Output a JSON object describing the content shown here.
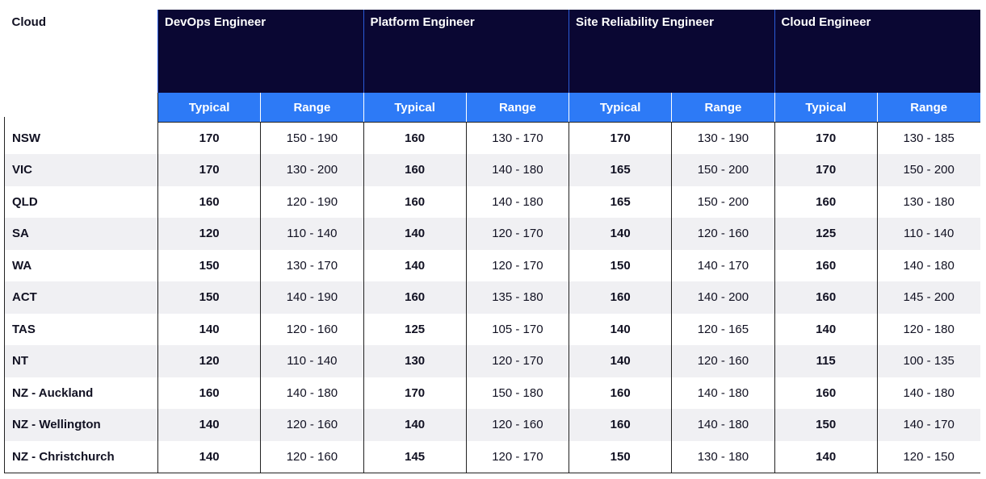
{
  "header": {
    "corner_label": "Cloud",
    "roles": [
      "DevOps Engineer",
      "Platform Engineer",
      "Site Reliability Engineer",
      "Cloud Engineer"
    ],
    "typical_label": "Typical",
    "range_label": "Range"
  },
  "rows": [
    {
      "location": "NSW",
      "cells": [
        "170",
        "150 - 190",
        "160",
        "130 - 170",
        "170",
        "130 - 190",
        "170",
        "130 - 185"
      ]
    },
    {
      "location": "VIC",
      "cells": [
        "170",
        "130 - 200",
        "160",
        "140 - 180",
        "165",
        "150 - 200",
        "170",
        "150 - 200"
      ]
    },
    {
      "location": "QLD",
      "cells": [
        "160",
        "120 - 190",
        "160",
        "140 - 180",
        "165",
        "150 - 200",
        "160",
        "130 - 180"
      ]
    },
    {
      "location": "SA",
      "cells": [
        "120",
        "110 - 140",
        "140",
        "120 - 170",
        "140",
        "120 - 160",
        "125",
        "110 - 140"
      ]
    },
    {
      "location": "WA",
      "cells": [
        "150",
        "130 - 170",
        "140",
        "120 - 170",
        "150",
        "140 - 170",
        "160",
        "140 - 180"
      ]
    },
    {
      "location": "ACT",
      "cells": [
        "150",
        "140 - 190",
        "160",
        "135 - 180",
        "160",
        "140 - 200",
        "160",
        "145 - 200"
      ]
    },
    {
      "location": "TAS",
      "cells": [
        "140",
        "120 - 160",
        "125",
        "105 - 170",
        "140",
        "120 - 165",
        "140",
        "120 - 180"
      ]
    },
    {
      "location": "NT",
      "cells": [
        "120",
        "110 - 140",
        "130",
        "120 - 170",
        "140",
        "120 - 160",
        "115",
        "100 - 135"
      ]
    },
    {
      "location": "NZ - Auckland",
      "cells": [
        "160",
        "140 - 180",
        "170",
        "150 - 180",
        "160",
        "140 - 180",
        "160",
        "140 - 180"
      ]
    },
    {
      "location": "NZ - Wellington",
      "cells": [
        "140",
        "120 - 160",
        "140",
        "120 - 160",
        "160",
        "140 - 180",
        "150",
        "140 - 170"
      ]
    },
    {
      "location": "NZ - Christchurch",
      "cells": [
        "140",
        "120 - 160",
        "145",
        "120 - 170",
        "150",
        "130 - 180",
        "140",
        "120 - 150"
      ]
    }
  ]
}
